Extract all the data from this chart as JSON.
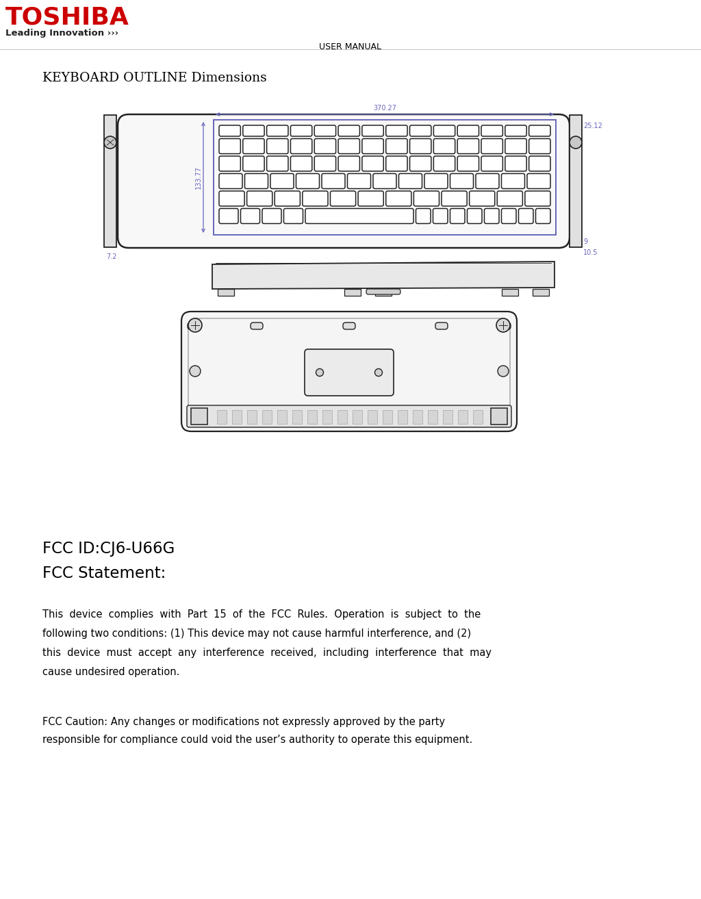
{
  "title": "USER MANUAL",
  "section_title": "KEYBOARD OUTLINE Dimensions",
  "fcc_id_line": "FCC ID:CJ6-U66G",
  "fcc_statement_line": "FCC Statement:",
  "fcc_body_lines": [
    "This  device  complies  with  Part  15  of  the  FCC  Rules.  Operation  is  subject  to  the",
    "following two conditions: (1) This device may not cause harmful interference, and (2)",
    "this  device  must  accept  any  interference  received,  including  interference  that  may",
    "cause undesired operation."
  ],
  "fcc_caution_lines": [
    "FCC Caution: Any changes or modifications not expressly approved by the party",
    "responsible for compliance could void the user’s authority to operate this equipment."
  ],
  "dim_370": "370.27",
  "dim_133": "133.77",
  "dim_72": "7.2",
  "dim_2512": "25.12",
  "dim_9": "9",
  "dim_105": "10.5",
  "toshiba_red": "#cc0000",
  "dim_blue": "#6666bb",
  "black": "#000000",
  "dark": "#222222",
  "gray_shell": "#f8f8f8",
  "gray_key": "#ffffff",
  "gray_side": "#e8e8e8",
  "white": "#ffffff"
}
